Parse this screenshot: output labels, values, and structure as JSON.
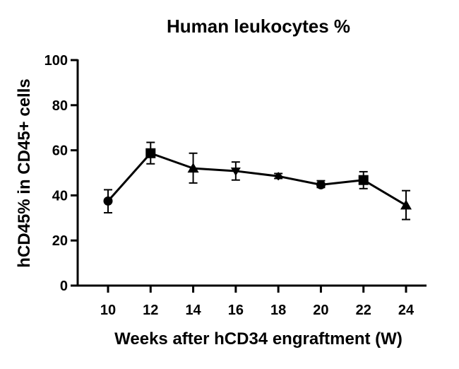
{
  "chart_data": {
    "type": "line",
    "title": "Human leukocytes %",
    "xlabel": "Weeks after hCD34 engraftment (W)",
    "ylabel": "hCD45% in CD45+ cells",
    "x": [
      10,
      12,
      14,
      16,
      18,
      20,
      22,
      24
    ],
    "xticks": [
      "10",
      "12",
      "14",
      "16",
      "18",
      "20",
      "22",
      "24"
    ],
    "yticks": [
      "0",
      "20",
      "40",
      "60",
      "80",
      "100"
    ],
    "ylim": [
      0,
      100
    ],
    "series": [
      {
        "name": "hCD45%",
        "values": [
          37.5,
          58.7,
          52.0,
          50.8,
          48.5,
          44.7,
          46.8,
          35.6
        ],
        "error_low": [
          32.3,
          54.0,
          45.5,
          46.8,
          47.5,
          43.5,
          43.0,
          29.3
        ],
        "error_high": [
          42.5,
          63.5,
          58.7,
          54.8,
          49.7,
          46.5,
          50.5,
          42.1
        ],
        "markers": [
          "circle",
          "square",
          "triangle-up",
          "triangle-down",
          "diamond",
          "circle",
          "square",
          "triangle-up"
        ]
      }
    ],
    "grid": false,
    "colors": {
      "line": "#000000",
      "marker": "#000000"
    }
  }
}
